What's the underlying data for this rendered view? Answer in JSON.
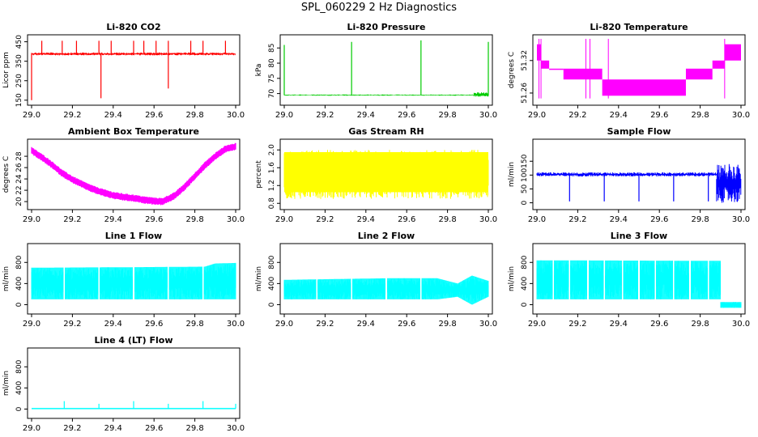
{
  "main_title": "SPL_060229  2 Hz Diagnostics",
  "chart_data": [
    {
      "type": "line",
      "title": "Li-820 CO2",
      "xlabel": "",
      "ylabel": "Licor ppm",
      "xlim": [
        29.0,
        30.0
      ],
      "ylim": [
        145,
        465
      ],
      "x_ticks": [
        29.0,
        29.2,
        29.4,
        29.6,
        29.8,
        30.0
      ],
      "x_tick_labels": [
        "29.0",
        "29.2",
        "29.4",
        "29.6",
        "29.8",
        "30.0"
      ],
      "y_ticks": [
        150,
        250,
        350,
        450
      ],
      "y_tick_labels": [
        "150",
        "250",
        "350",
        "450"
      ],
      "color": "#ff0000",
      "series": [
        {
          "name": "CO2",
          "band": [
            380,
            395
          ],
          "segments": [
            [
              29.0,
              150
            ],
            [
              29.34,
              160
            ],
            [
              29.67,
              210
            ]
          ],
          "spikes": [
            [
              29.05,
              455
            ],
            [
              29.15,
              455
            ],
            [
              29.22,
              455
            ],
            [
              29.33,
              455
            ],
            [
              29.39,
              455
            ],
            [
              29.5,
              455
            ],
            [
              29.55,
              455
            ],
            [
              29.61,
              455
            ],
            [
              29.67,
              455
            ],
            [
              29.78,
              455
            ],
            [
              29.84,
              455
            ],
            [
              29.95,
              455
            ]
          ]
        }
      ]
    },
    {
      "type": "line",
      "title": "Li-820 Pressure",
      "xlabel": "",
      "ylabel": "kPa",
      "xlim": [
        29.0,
        30.0
      ],
      "ylim": [
        67.5,
        88
      ],
      "x_ticks": [
        29.0,
        29.2,
        29.4,
        29.6,
        29.8,
        30.0
      ],
      "x_tick_labels": [
        "29.0",
        "29.2",
        "29.4",
        "29.6",
        "29.8",
        "30.0"
      ],
      "y_ticks": [
        70,
        75,
        80,
        85
      ],
      "y_tick_labels": [
        "70",
        "75",
        "80",
        "85"
      ],
      "color": "#00cc00",
      "series": [
        {
          "name": "Pressure",
          "band": [
            69.3,
            69.7
          ],
          "spikes": [
            [
              29.0,
              86
            ],
            [
              29.33,
              87
            ],
            [
              29.67,
              87.5
            ],
            [
              30.0,
              87
            ]
          ]
        }
      ]
    },
    {
      "type": "line",
      "title": "Li-820 Temperature",
      "xlabel": "",
      "ylabel": "degrees C",
      "xlim": [
        29.0,
        30.0
      ],
      "ylim": [
        51.245,
        51.36
      ],
      "x_ticks": [
        29.0,
        29.2,
        29.4,
        29.6,
        29.8,
        30.0
      ],
      "x_tick_labels": [
        "29.0",
        "29.2",
        "29.4",
        "29.6",
        "29.8",
        "30.0"
      ],
      "y_ticks": [
        51.26,
        51.32
      ],
      "y_tick_labels": [
        "51.26",
        "51.32"
      ],
      "color": "#ff00ff",
      "series": [
        {
          "name": "Temperature",
          "steps": [
            [
              29.0,
              29.02,
              51.32,
              51.35
            ],
            [
              29.02,
              29.06,
              51.305,
              51.32
            ],
            [
              29.06,
              29.13,
              51.305,
              51.305
            ],
            [
              29.13,
              29.32,
              51.285,
              51.305
            ],
            [
              29.32,
              29.73,
              51.255,
              51.285
            ],
            [
              29.73,
              29.86,
              51.285,
              51.305
            ],
            [
              29.86,
              29.92,
              51.305,
              51.32
            ],
            [
              29.92,
              30.0,
              51.32,
              51.35
            ]
          ]
        }
      ]
    },
    {
      "type": "line",
      "title": "Ambient Box Temperature",
      "xlabel": "",
      "ylabel": "degrees C",
      "xlim": [
        29.0,
        30.0
      ],
      "ylim": [
        19.3,
        30.3
      ],
      "x_ticks": [
        29.0,
        29.2,
        29.4,
        29.6,
        29.8,
        30.0
      ],
      "x_tick_labels": [
        "29.0",
        "29.2",
        "29.4",
        "29.6",
        "29.8",
        "30.0"
      ],
      "y_ticks": [
        20,
        22,
        24,
        26,
        28
      ],
      "y_tick_labels": [
        "20",
        "22",
        "24",
        "26",
        "28"
      ],
      "color": "#ff00ff",
      "series": [
        {
          "name": "Ambient",
          "x": [
            29.0,
            29.05,
            29.1,
            29.15,
            29.2,
            29.25,
            29.3,
            29.35,
            29.4,
            29.45,
            29.5,
            29.55,
            29.6,
            29.64,
            29.7,
            29.75,
            29.8,
            29.85,
            29.9,
            29.95,
            30.0
          ],
          "y": [
            29.0,
            27.8,
            26.5,
            25.0,
            23.9,
            23.0,
            22.2,
            21.6,
            21.1,
            20.8,
            20.6,
            20.3,
            20.1,
            20.0,
            21.0,
            22.6,
            24.5,
            26.4,
            28.0,
            29.3,
            29.7
          ]
        }
      ]
    },
    {
      "type": "line",
      "title": "Gas Stream RH",
      "xlabel": "",
      "ylabel": "percent",
      "xlim": [
        29.0,
        30.0
      ],
      "ylim": [
        0.75,
        2.15
      ],
      "x_ticks": [
        29.0,
        29.2,
        29.4,
        29.6,
        29.8,
        30.0
      ],
      "x_tick_labels": [
        "29.0",
        "29.2",
        "29.4",
        "29.6",
        "29.8",
        "30.0"
      ],
      "y_ticks": [
        0.8,
        1.2,
        1.6,
        2.0
      ],
      "y_tick_labels": [
        "0.8",
        "1.2",
        "1.6",
        "2.0"
      ],
      "color": "#ffff00",
      "series": [
        {
          "name": "RH",
          "band": [
            0.9,
            2.0
          ]
        }
      ]
    },
    {
      "type": "line",
      "title": "Sample Flow",
      "xlabel": "",
      "ylabel": "ml/min",
      "xlim": [
        29.0,
        30.0
      ],
      "ylim": [
        -10,
        215
      ],
      "x_ticks": [
        29.0,
        29.2,
        29.4,
        29.6,
        29.8,
        30.0
      ],
      "x_tick_labels": [
        "29.0",
        "29.2",
        "29.4",
        "29.6",
        "29.8",
        "30.0"
      ],
      "y_ticks": [
        0,
        50,
        100,
        150
      ],
      "y_tick_labels": [
        "0",
        "50",
        "100",
        "150"
      ],
      "color": "#0000ff",
      "series": [
        {
          "name": "Sample Flow",
          "band": [
            95,
            110
          ],
          "dips": [
            29.16,
            29.33,
            29.5,
            29.67,
            29.84
          ],
          "noisy_region": [
            29.88,
            30.0,
            0,
            140
          ]
        }
      ]
    },
    {
      "type": "line",
      "title": "Line 1 Flow",
      "xlabel": "",
      "ylabel": "ml/min",
      "xlim": [
        29.0,
        30.0
      ],
      "ylim": [
        -100,
        1080
      ],
      "x_ticks": [
        29.0,
        29.2,
        29.4,
        29.6,
        29.8,
        30.0
      ],
      "x_tick_labels": [
        "29.0",
        "29.2",
        "29.4",
        "29.6",
        "29.8",
        "30.0"
      ],
      "y_ticks": [
        0,
        400,
        800
      ],
      "y_tick_labels": [
        "0",
        "400",
        "800"
      ],
      "color": "#00ffff",
      "series": [
        {
          "name": "Line 1",
          "band_x": [
            29.0,
            29.5,
            29.85,
            29.9,
            30.0
          ],
          "band_low": [
            100,
            100,
            100,
            100,
            100
          ],
          "band_high": [
            700,
            710,
            720,
            780,
            790
          ],
          "gaps": [
            29.16,
            29.33,
            29.5,
            29.67,
            29.84
          ]
        }
      ]
    },
    {
      "type": "line",
      "title": "Line 2 Flow",
      "xlabel": "",
      "ylabel": "ml/min",
      "xlim": [
        29.0,
        30.0
      ],
      "ylim": [
        -100,
        1080
      ],
      "x_ticks": [
        29.0,
        29.2,
        29.4,
        29.6,
        29.8,
        30.0
      ],
      "x_tick_labels": [
        "29.0",
        "29.2",
        "29.4",
        "29.6",
        "29.8",
        "30.0"
      ],
      "y_ticks": [
        0,
        400,
        800
      ],
      "y_tick_labels": [
        "0",
        "400",
        "800"
      ],
      "color": "#00ffff",
      "series": [
        {
          "name": "Line 2",
          "band_x": [
            29.0,
            29.5,
            29.75,
            29.85,
            29.92,
            30.0
          ],
          "band_low": [
            100,
            100,
            100,
            150,
            0,
            150
          ],
          "band_high": [
            470,
            500,
            500,
            400,
            550,
            450
          ],
          "gaps": [
            29.16,
            29.33,
            29.5,
            29.67
          ]
        }
      ]
    },
    {
      "type": "line",
      "title": "Line 3 Flow",
      "xlabel": "",
      "ylabel": "ml/min",
      "xlim": [
        29.0,
        30.0
      ],
      "ylim": [
        -100,
        1080
      ],
      "x_ticks": [
        29.0,
        29.2,
        29.4,
        29.6,
        29.8,
        30.0
      ],
      "x_tick_labels": [
        "29.0",
        "29.2",
        "29.4",
        "29.6",
        "29.8",
        "30.0"
      ],
      "y_ticks": [
        0,
        400,
        800
      ],
      "y_tick_labels": [
        "0",
        "400",
        "800"
      ],
      "color": "#00ffff",
      "series": [
        {
          "name": "Line 3",
          "band_x": [
            29.0,
            29.9,
            29.9,
            30.0
          ],
          "band_low": [
            100,
            100,
            -60,
            -60
          ],
          "band_high": [
            840,
            830,
            50,
            50
          ],
          "gaps": [
            29.08,
            29.16,
            29.25,
            29.33,
            29.42,
            29.5,
            29.58,
            29.67,
            29.75,
            29.84
          ]
        }
      ]
    },
    {
      "type": "line",
      "title": "Line 4 (LT) Flow",
      "xlabel": "",
      "ylabel": "ml/min",
      "xlim": [
        29.0,
        30.0
      ],
      "ylim": [
        -100,
        1080
      ],
      "x_ticks": [
        29.0,
        29.2,
        29.4,
        29.6,
        29.8,
        30.0
      ],
      "x_tick_labels": [
        "29.0",
        "29.2",
        "29.4",
        "29.6",
        "29.8",
        "30.0"
      ],
      "y_ticks": [
        0,
        400,
        800
      ],
      "y_tick_labels": [
        "0",
        "400",
        "800"
      ],
      "color": "#00ffff",
      "series": [
        {
          "name": "Line 4",
          "base": 10,
          "spikes": [
            [
              29.16,
              150
            ],
            [
              29.33,
              100
            ],
            [
              29.5,
              150
            ],
            [
              29.67,
              100
            ],
            [
              29.84,
              150
            ],
            [
              30.0,
              100
            ]
          ]
        }
      ]
    }
  ]
}
